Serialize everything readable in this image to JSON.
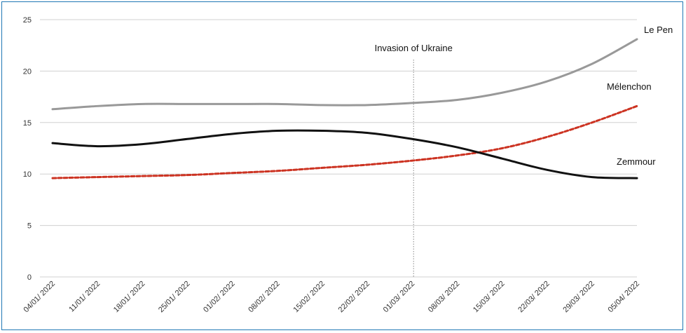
{
  "chart_data": {
    "type": "line",
    "x": [
      "04/01/2022",
      "11/01/2022",
      "18/01/2022",
      "25/01/2022",
      "01/02/2022",
      "08/02/2022",
      "15/02/2022",
      "22/02/2022",
      "01/03/2022",
      "08/03/2022",
      "15/03/2022",
      "22/03/2022",
      "29/03/2022",
      "05/04/2022"
    ],
    "ylim": [
      0,
      25
    ],
    "yticks": [
      0,
      5,
      10,
      15,
      20,
      25
    ],
    "grid": true,
    "series": [
      {
        "name": "Le Pen",
        "color": "#999999",
        "style": "solid",
        "values": [
          16.3,
          16.6,
          16.8,
          16.8,
          16.8,
          16.8,
          16.7,
          16.7,
          16.9,
          17.2,
          17.9,
          19.0,
          20.7,
          23.1
        ]
      },
      {
        "name": "Mélenchon",
        "color": "#cc3322",
        "style": "dashed",
        "values": [
          9.6,
          9.7,
          9.8,
          9.9,
          10.1,
          10.3,
          10.6,
          10.9,
          11.3,
          11.8,
          12.5,
          13.6,
          15.0,
          16.6
        ]
      },
      {
        "name": "Zemmour",
        "color": "#111111",
        "style": "solid",
        "values": [
          13.0,
          12.7,
          12.9,
          13.4,
          13.9,
          14.2,
          14.2,
          14.0,
          13.4,
          12.6,
          11.5,
          10.4,
          9.7,
          9.6
        ]
      }
    ],
    "annotations": [
      {
        "text": "Invasion of Ukraine",
        "at_x": "01/03/2022",
        "style": "dotted-vertical-line"
      }
    ]
  }
}
